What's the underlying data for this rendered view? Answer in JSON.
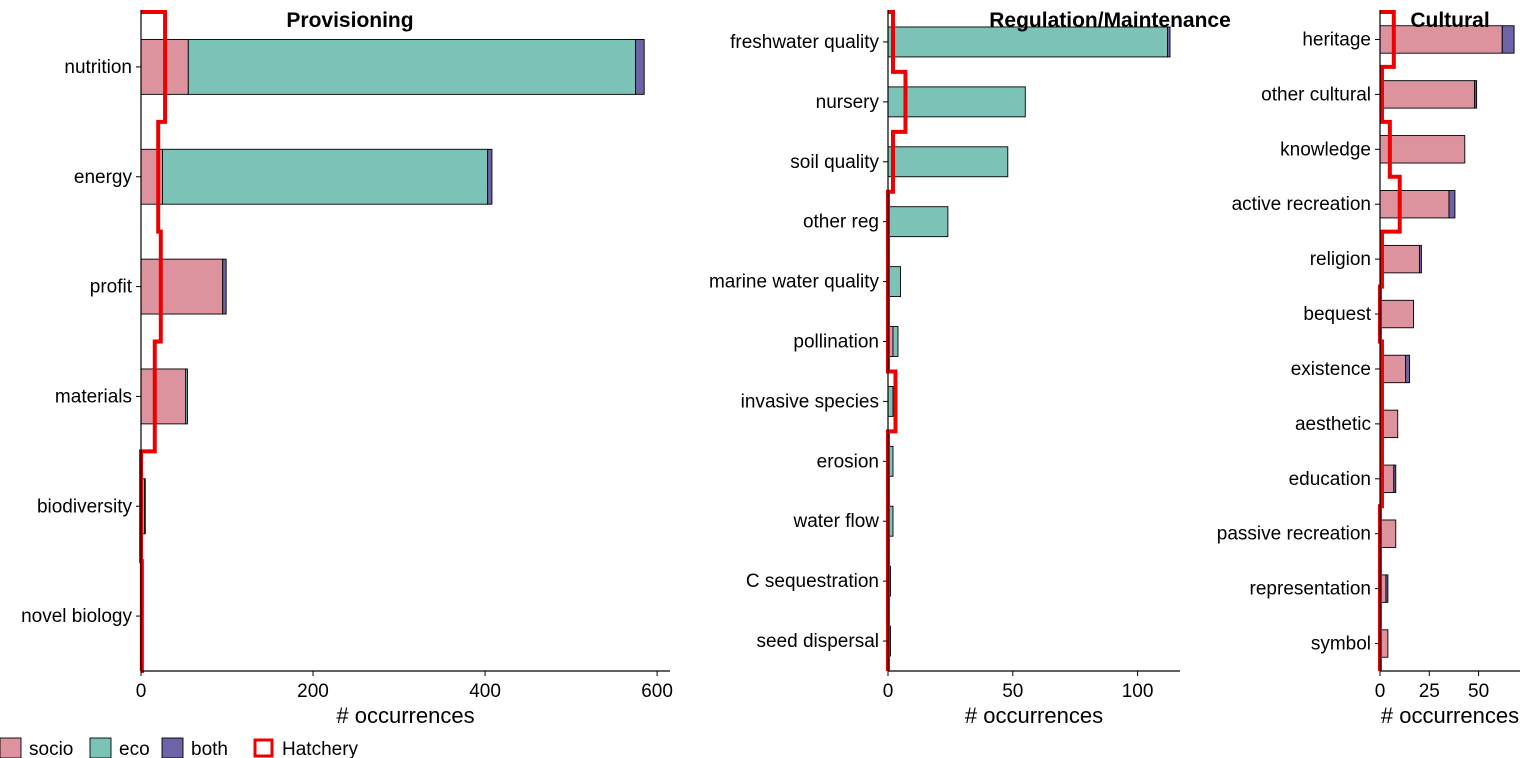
{
  "colors": {
    "socio": "#dc939e",
    "eco": "#7cc3b7",
    "both": "#6c64a6",
    "hatchery": "#ee0000"
  },
  "legend": {
    "items": [
      {
        "key": "socio",
        "label": "socio",
        "style": "fill"
      },
      {
        "key": "eco",
        "label": "eco",
        "style": "fill"
      },
      {
        "key": "both",
        "label": "both",
        "style": "fill"
      },
      {
        "key": "hatchery",
        "label": "Hatchery",
        "style": "outline"
      }
    ],
    "placement": "bottom-left"
  },
  "chart_data": [
    {
      "type": "bar",
      "orientation": "horizontal",
      "stacked": true,
      "title": "Provisioning",
      "xlabel": "# occurrences",
      "xlim": [
        0,
        615
      ],
      "xticks": [
        0,
        200,
        400,
        600
      ],
      "categories": [
        "nutrition",
        "energy",
        "profit",
        "materials",
        "biodiversity",
        "novel biology"
      ],
      "series": [
        {
          "name": "socio",
          "values": [
            55,
            25,
            95,
            52,
            1,
            0
          ]
        },
        {
          "name": "eco",
          "values": [
            520,
            378,
            0,
            2,
            3,
            0
          ]
        },
        {
          "name": "both",
          "values": [
            10,
            5,
            4,
            0,
            1,
            0
          ]
        }
      ],
      "hatchery": [
        28,
        20,
        23,
        16,
        0,
        1
      ]
    },
    {
      "type": "bar",
      "orientation": "horizontal",
      "stacked": true,
      "title": "Regulation/Maintenance",
      "xlabel": "# occurrences",
      "xlim": [
        0,
        117
      ],
      "xticks": [
        0,
        50,
        100
      ],
      "categories": [
        "freshwater quality",
        "nursery",
        "soil quality",
        "other reg",
        "marine water quality",
        "pollination",
        "invasive species",
        "erosion",
        "water flow",
        "C sequestration",
        "seed dispersal"
      ],
      "series": [
        {
          "name": "socio",
          "values": [
            0,
            0,
            0,
            0,
            0,
            2,
            0,
            0,
            0,
            0,
            0
          ]
        },
        {
          "name": "eco",
          "values": [
            112,
            55,
            48,
            24,
            5,
            2,
            2,
            2,
            2,
            1,
            1
          ]
        },
        {
          "name": "both",
          "values": [
            1,
            0,
            0,
            0,
            0,
            0,
            0,
            0,
            0,
            0,
            0
          ]
        }
      ],
      "hatchery": [
        2,
        7,
        2,
        0,
        0,
        0,
        3,
        0,
        0,
        0,
        0
      ]
    },
    {
      "type": "bar",
      "orientation": "horizontal",
      "stacked": true,
      "title": "Cultural",
      "xlabel": "# occurrences",
      "xlim": [
        0,
        71
      ],
      "xticks": [
        0,
        25,
        50
      ],
      "categories": [
        "heritage",
        "other cultural",
        "knowledge",
        "active recreation",
        "religion",
        "bequest",
        "existence",
        "aesthetic",
        "education",
        "passive recreation",
        "representation",
        "symbol"
      ],
      "series": [
        {
          "name": "socio",
          "values": [
            62,
            48,
            43,
            35,
            20,
            17,
            13,
            9,
            7,
            8,
            3,
            4
          ]
        },
        {
          "name": "eco",
          "values": [
            0,
            0,
            0,
            0,
            0,
            0,
            0,
            0,
            0,
            0,
            0,
            0
          ]
        },
        {
          "name": "both",
          "values": [
            6,
            1,
            0,
            3,
            1,
            0,
            2,
            0,
            1,
            0,
            1,
            0
          ]
        }
      ],
      "hatchery": [
        7,
        1,
        5,
        10,
        1,
        0,
        1,
        1,
        1,
        0,
        0,
        0
      ]
    }
  ]
}
